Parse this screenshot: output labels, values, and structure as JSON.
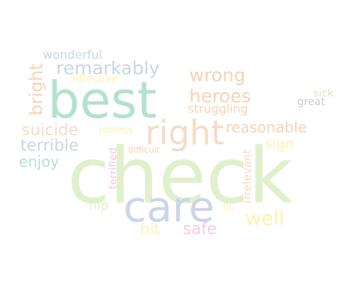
{
  "words": {
    "check": "check",
    "best": "best",
    "care": "care",
    "right": "right",
    "remarkably": "remarkably",
    "wrong": "wrong",
    "heroes": "heroes",
    "reasonable": "reasonable",
    "suicide": "suicide",
    "terrible": "terrible",
    "enjoy": "enjoy",
    "bright": "bright",
    "wonderful": "wonderful",
    "effective": "effective",
    "struggling": "struggling",
    "sign": "sign",
    "well": "well",
    "safe": "safe",
    "hit": "hit",
    "hip": "hip",
    "irrelevant": "irrelevant",
    "terrified": "terrified",
    "jobless": "jobless",
    "difficult": "difficult",
    "sick": "sick",
    "great": "great",
    "flu": "flu"
  },
  "colors": {
    "check": "#e0f0cc",
    "best": "#b3e2cd",
    "care": "#cbd5e8",
    "right": "#f4dcc6",
    "remarkably": "#cbd5e8",
    "wrong": "#f9d2b5",
    "heroes": "#f9d2b5",
    "reasonable": "#f9d2b5",
    "suicide": "#f4dcc6",
    "terrible": "#cbd5e8",
    "enjoy": "#b3e2cd",
    "bright": "#f9d2b5",
    "wonderful": "#cbd5e8",
    "effective": "#fff2ae",
    "struggling": "#f9d2b5",
    "sign": "#fff2ae",
    "well": "#fff2ae",
    "safe": "#f4cae4",
    "hit": "#fff2ae",
    "hip": "#e0f0cc",
    "irrelevant": "#f4dcc6",
    "terrified": "#f4cae4",
    "jobless": "#fff2ae",
    "difficult": "#f9d2b5",
    "sick": "#f4dcc6",
    "great": "#cccccc",
    "flu": "#fff2ae"
  }
}
